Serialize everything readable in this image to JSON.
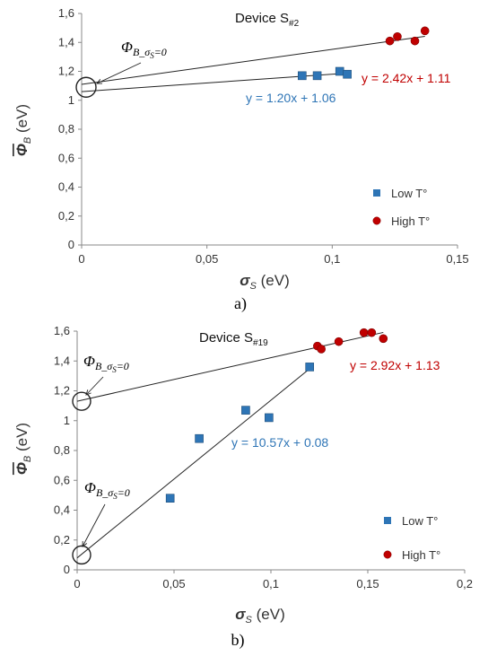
{
  "chart_data": [
    {
      "type": "scatter",
      "panel_label": "a)",
      "title": "Device S",
      "title_subscript": "#2",
      "xlabel": "σ",
      "xlabel_sub": "S",
      "xlabel_unit": " (eV)",
      "ylabel": "Φ",
      "ylabel_sub": "B",
      "ylabel_unit": " (eV)",
      "xlim": [
        0,
        0.15
      ],
      "ylim": [
        0,
        1.6
      ],
      "xticks": [
        "0",
        "0,05",
        "0,1",
        "0,15"
      ],
      "yticks": [
        "0",
        "0,2",
        "0,4",
        "0,6",
        "0,8",
        "1",
        "1,2",
        "1,4",
        "1,6"
      ],
      "legend_position": "bottom-right",
      "series": [
        {
          "name": "Low T°",
          "marker": "square",
          "color": "#2E75B6",
          "points": [
            [
              0.088,
              1.17
            ],
            [
              0.094,
              1.17
            ],
            [
              0.103,
              1.2
            ],
            [
              0.106,
              1.18
            ]
          ]
        },
        {
          "name": "High T°",
          "marker": "circle",
          "color": "#C00000",
          "points": [
            [
              0.123,
              1.41
            ],
            [
              0.126,
              1.44
            ],
            [
              0.133,
              1.41
            ],
            [
              0.137,
              1.48
            ]
          ]
        }
      ],
      "fits": [
        {
          "label": "y = 2.42x + 1.11",
          "slope": 2.42,
          "intercept": 1.11,
          "x_range": [
            0,
            0.137
          ],
          "color": "#C00000"
        },
        {
          "label": "y = 1.20x + 1.06",
          "slope": 1.2,
          "intercept": 1.06,
          "x_range": [
            0,
            0.106
          ],
          "color": "#2E75B6"
        }
      ],
      "annotations": [
        {
          "text": "Φ",
          "sub": "B_σ",
          "subsub": "S",
          "tail": "=0",
          "at": [
            0,
            1.09
          ]
        }
      ]
    },
    {
      "type": "scatter",
      "panel_label": "b)",
      "title": "Device S",
      "title_subscript": "#19",
      "xlabel": "σ",
      "xlabel_sub": "S",
      "xlabel_unit": " (eV)",
      "ylabel": "Φ",
      "ylabel_sub": "B",
      "ylabel_unit": " (eV)",
      "xlim": [
        0,
        0.2
      ],
      "ylim": [
        0,
        1.6
      ],
      "xticks": [
        "0",
        "0,05",
        "0,1",
        "0,15",
        "0,2"
      ],
      "yticks": [
        "0",
        "0,2",
        "0,4",
        "0,6",
        "0,8",
        "1",
        "1,2",
        "1,4",
        "1,6"
      ],
      "legend_position": "bottom-right",
      "series": [
        {
          "name": "Low T°",
          "marker": "square",
          "color": "#2E75B6",
          "points": [
            [
              0.048,
              0.48
            ],
            [
              0.063,
              0.88
            ],
            [
              0.087,
              1.07
            ],
            [
              0.099,
              1.02
            ],
            [
              0.12,
              1.36
            ]
          ]
        },
        {
          "name": "High T°",
          "marker": "circle",
          "color": "#C00000",
          "points": [
            [
              0.124,
              1.5
            ],
            [
              0.126,
              1.48
            ],
            [
              0.135,
              1.53
            ],
            [
              0.148,
              1.59
            ],
            [
              0.152,
              1.59
            ],
            [
              0.158,
              1.55
            ]
          ]
        }
      ],
      "fits": [
        {
          "label": "y = 2.92x + 1.13",
          "slope": 2.92,
          "intercept": 1.13,
          "x_range": [
            0,
            0.158
          ],
          "color": "#C00000"
        },
        {
          "label": "y = 10.57x + 0.08",
          "slope": 10.57,
          "intercept": 0.08,
          "x_range": [
            0,
            0.12
          ],
          "color": "#2E75B6"
        }
      ],
      "annotations": [
        {
          "text": "Φ",
          "sub": "B_σ",
          "subsub": "S",
          "tail": "=0",
          "at": [
            0,
            1.13
          ]
        },
        {
          "text": "Φ",
          "sub": "B_σ",
          "subsub": "S",
          "tail": "=0",
          "at": [
            0,
            0.1
          ]
        }
      ]
    }
  ]
}
